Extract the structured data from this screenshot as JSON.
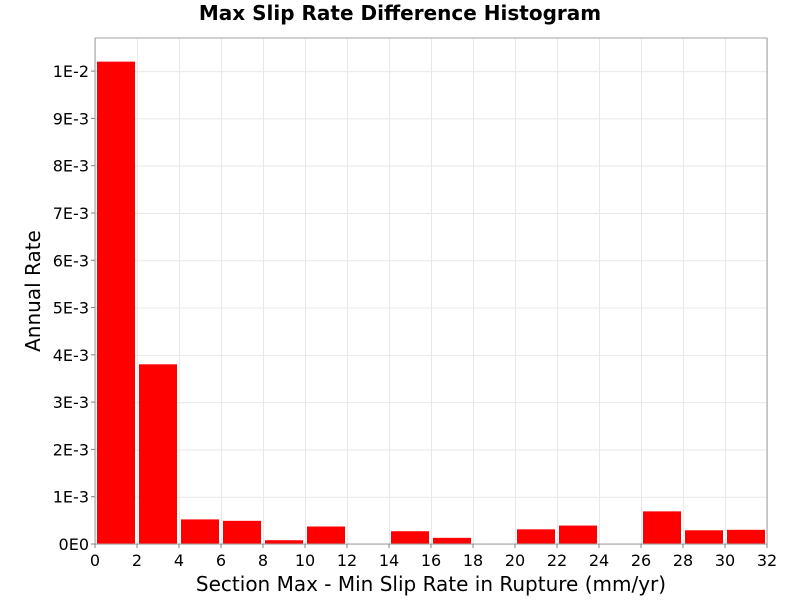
{
  "chart_data": {
    "type": "bar",
    "title": "Max Slip Rate Difference Histogram",
    "xlabel": "Section Max - Min Slip Rate in Rupture (mm/yr)",
    "ylabel": "Annual Rate",
    "xlim": [
      0,
      32
    ],
    "ylim": [
      0,
      0.0107
    ],
    "bin_width": 2,
    "x": [
      1,
      3,
      5,
      7,
      9,
      11,
      13,
      15,
      17,
      19,
      21,
      23,
      25,
      27,
      29,
      31
    ],
    "values": [
      0.0102,
      0.0038,
      0.00052,
      0.00049,
      8e-05,
      0.00037,
      0,
      0.00027,
      0.00013,
      0,
      0.00031,
      0.00039,
      0,
      0.00069,
      0.00029,
      0.0003
    ],
    "x_ticks": [
      0,
      2,
      4,
      6,
      8,
      10,
      12,
      14,
      16,
      18,
      20,
      22,
      24,
      26,
      28,
      30,
      32
    ],
    "x_tick_labels": [
      "0",
      "2",
      "4",
      "6",
      "8",
      "10",
      "12",
      "14",
      "16",
      "18",
      "20",
      "22",
      "24",
      "26",
      "28",
      "30",
      "32"
    ],
    "y_ticks": [
      0,
      0.001,
      0.002,
      0.003,
      0.004,
      0.005,
      0.006,
      0.007,
      0.008,
      0.009,
      0.01
    ],
    "y_tick_labels": [
      "0E0",
      "1E-3",
      "2E-3",
      "3E-3",
      "4E-3",
      "5E-3",
      "6E-3",
      "7E-3",
      "8E-3",
      "9E-3",
      "1E-2"
    ],
    "grid": true,
    "bar_color": "#ff0000",
    "grid_color": "#e8e8e8",
    "frame_color": "#a0a0a0"
  }
}
